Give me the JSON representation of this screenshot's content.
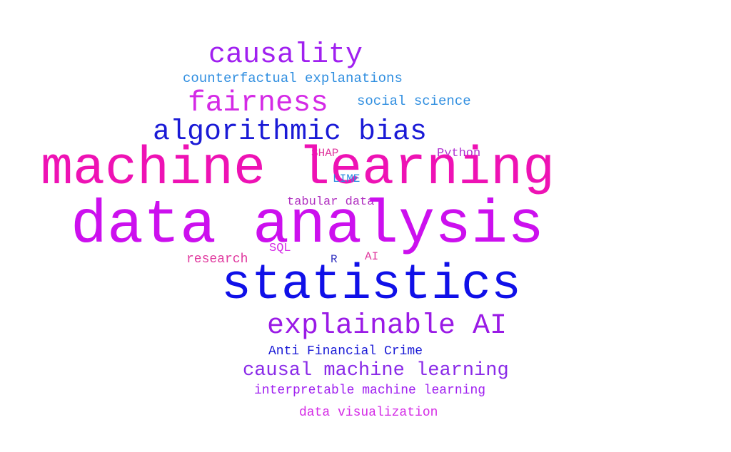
{
  "colors": {
    "background": "#ffffff",
    "magenta": "#e812c8",
    "violet": "#c818e8",
    "purple": "#8a2be8",
    "blue": "#1414e6",
    "light_blue": "#2f8ee0",
    "pink": "#e0389e"
  },
  "words": [
    {
      "text": "causality",
      "color": "#a020f0"
    },
    {
      "text": "counterfactual explanations",
      "color": "#2f8ee0"
    },
    {
      "text": "fairness",
      "color": "#d42ae6"
    },
    {
      "text": "social science",
      "color": "#2f8ee0"
    },
    {
      "text": "algorithmic bias",
      "color": "#1a1ad6"
    },
    {
      "text": "SHAP",
      "color": "#e0389e"
    },
    {
      "text": "Python",
      "color": "#b030d0"
    },
    {
      "text": "machine learning",
      "color": "#ee12b4"
    },
    {
      "text": "LIME",
      "color": "#2f8ee0"
    },
    {
      "text": "tabular data",
      "color": "#b030c0"
    },
    {
      "text": "data analysis",
      "color": "#cc10ee"
    },
    {
      "text": "research",
      "color": "#e0389e"
    },
    {
      "text": "SQL",
      "color": "#d42ae6"
    },
    {
      "text": "R",
      "color": "#3030c0"
    },
    {
      "text": "AI",
      "color": "#e0389e"
    },
    {
      "text": "statistics",
      "color": "#1010e8"
    },
    {
      "text": "explainable AI",
      "color": "#9a1ae6"
    },
    {
      "text": "Anti Financial Crime",
      "color": "#1a1ad6"
    },
    {
      "text": "causal machine learning",
      "color": "#8a2be8"
    },
    {
      "text": "interpretable machine learning",
      "color": "#a020f0"
    },
    {
      "text": "data visualization",
      "color": "#d42ae6"
    }
  ]
}
